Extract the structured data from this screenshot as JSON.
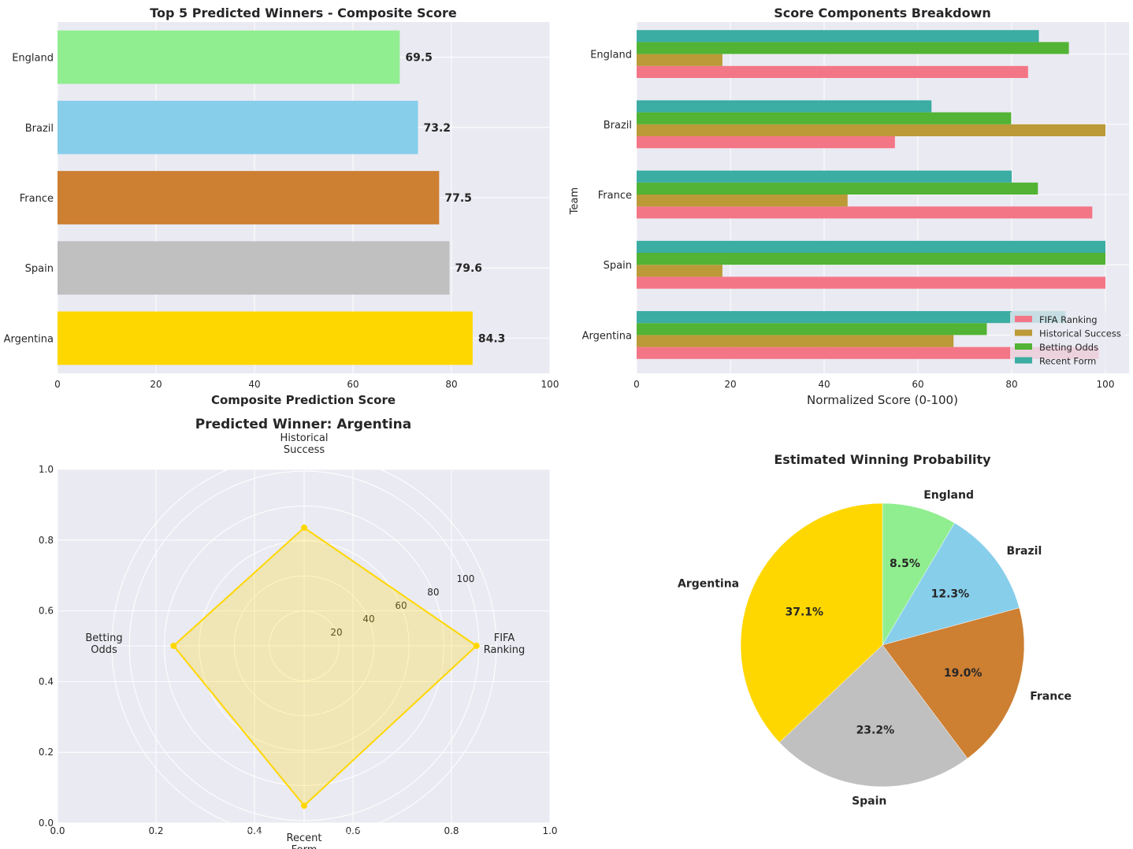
{
  "chart_data": [
    {
      "type": "bar",
      "orientation": "horizontal",
      "title": "Top 5 Predicted Winners - Composite Score",
      "xlabel": "Composite Prediction Score",
      "ylabel": "",
      "xlim": [
        0,
        100
      ],
      "xticks": [
        0,
        20,
        40,
        60,
        80,
        100
      ],
      "categories": [
        "Argentina",
        "Spain",
        "France",
        "Brazil",
        "England"
      ],
      "values": [
        84.3,
        79.6,
        77.5,
        73.2,
        69.5
      ],
      "value_labels": [
        "84.3",
        "79.6",
        "77.5",
        "73.2",
        "69.5"
      ],
      "xtick_labels": [
        "0",
        "20",
        "40",
        "60",
        "80",
        "100"
      ],
      "colors": [
        "#FFD700",
        "#C0C0C0",
        "#CD7F32",
        "#87CEEB",
        "#90EE90"
      ],
      "grid": true
    },
    {
      "type": "bar",
      "orientation": "horizontal",
      "grouped": true,
      "title": "Score Components Breakdown",
      "xlabel": "Normalized Score (0-100)",
      "ylabel": "Team",
      "xlim": [
        0,
        100
      ],
      "xticks": [
        0,
        20,
        40,
        60,
        80,
        100
      ],
      "xtick_labels": [
        "0",
        "20",
        "40",
        "60",
        "80",
        "100"
      ],
      "categories": [
        "Argentina",
        "Spain",
        "France",
        "Brazil",
        "England"
      ],
      "legend_position": "lower-right",
      "series": [
        {
          "name": "FIFA Ranking",
          "color": "#F37687",
          "values": [
            98.6,
            100,
            97.2,
            55.1,
            83.5
          ]
        },
        {
          "name": "Historical Success",
          "color": "#BB9A37",
          "values": [
            67.6,
            18.3,
            45.0,
            100,
            18.3
          ]
        },
        {
          "name": "Betting Odds",
          "color": "#52B334",
          "values": [
            74.7,
            100,
            85.6,
            79.9,
            92.2
          ]
        },
        {
          "name": "Recent Form",
          "color": "#3BADA3",
          "values": [
            91.5,
            100,
            80.0,
            62.9,
            85.8
          ]
        }
      ],
      "grid": true
    },
    {
      "type": "radar",
      "title": "Predicted Winner: Argentina",
      "axes": [
        {
          "label": [
            "FIFA",
            "Ranking"
          ],
          "value": 98.6
        },
        {
          "label": [
            "Historical",
            "Success"
          ],
          "value": 67.6
        },
        {
          "label": [
            "Betting",
            "Odds"
          ],
          "value": 74.7
        },
        {
          "label": [
            "Recent",
            "Form"
          ],
          "value": 91.5
        }
      ],
      "radial_ticks": [
        20,
        40,
        60,
        80,
        100
      ],
      "radial_tick_labels": [
        "20",
        "40",
        "60",
        "80",
        "100"
      ],
      "rmax": 110,
      "color": "#FFD700",
      "background_axes": {
        "xlim": [
          0,
          1
        ],
        "ylim": [
          0,
          1
        ],
        "xticks": [
          "0.0",
          "0.2",
          "0.4",
          "0.6",
          "0.8",
          "1.0"
        ],
        "yticks": [
          "0.0",
          "0.2",
          "0.4",
          "0.6",
          "0.8",
          "1.0"
        ]
      }
    },
    {
      "type": "pie",
      "title": "Estimated Winning Probability",
      "start_angle_deg": 90,
      "direction": "clockwise",
      "slices": [
        {
          "label": "England",
          "value": 8.5,
          "pct_label": "8.5%",
          "color": "#90EE90"
        },
        {
          "label": "Brazil",
          "value": 12.3,
          "pct_label": "12.3%",
          "color": "#87CEEB"
        },
        {
          "label": "France",
          "value": 19.0,
          "pct_label": "19.0%",
          "color": "#CD7F32"
        },
        {
          "label": "Spain",
          "value": 23.2,
          "pct_label": "23.2%",
          "color": "#C0C0C0"
        },
        {
          "label": "Argentina",
          "value": 37.1,
          "pct_label": "37.1%",
          "color": "#FFD700"
        }
      ]
    }
  ]
}
